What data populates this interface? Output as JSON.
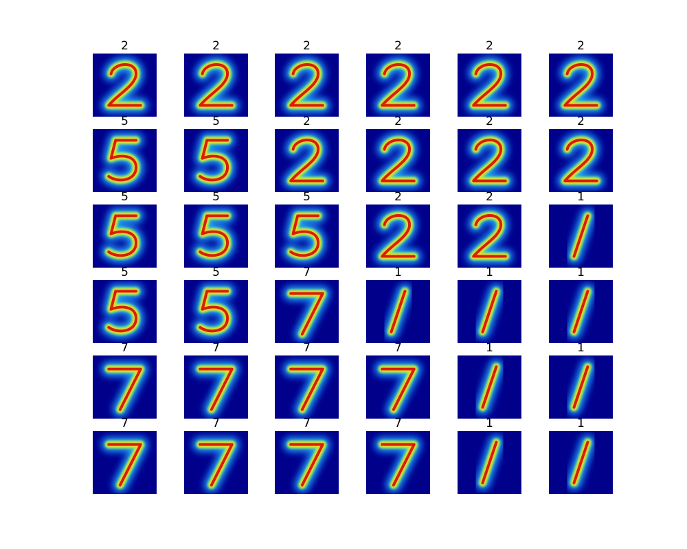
{
  "figure": {
    "colormap": "jet",
    "background_color": "#00008b",
    "grid": {
      "rows": 6,
      "cols": 6
    },
    "labels": [
      [
        "2",
        "2",
        "2",
        "2",
        "2",
        "2"
      ],
      [
        "5",
        "5",
        "2",
        "2",
        "2",
        "2"
      ],
      [
        "5",
        "5",
        "5",
        "2",
        "2",
        "1"
      ],
      [
        "5",
        "5",
        "7",
        "1",
        "1",
        "1"
      ],
      [
        "7",
        "7",
        "7",
        "7",
        "1",
        "1"
      ],
      [
        "7",
        "7",
        "7",
        "7",
        "1",
        "1"
      ]
    ]
  }
}
